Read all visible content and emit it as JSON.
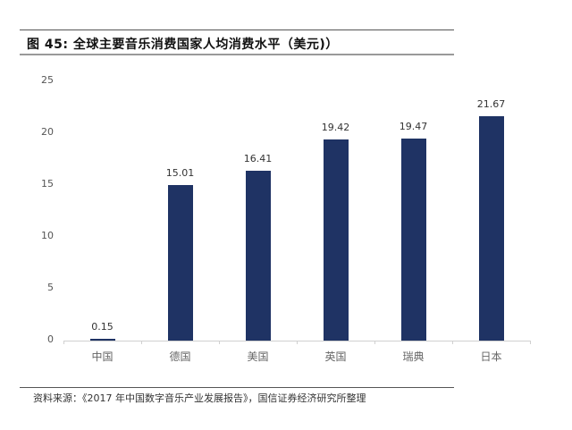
{
  "figure": {
    "title": "图 45: 全球主要音乐消费国家人均消费水平（美元)）",
    "source": "资料来源：《2017 年中国数字音乐产业发展报告》，国信证券经济研究所整理"
  },
  "colors": {
    "bar": "#1f3364",
    "axis": "#d0d0d0",
    "rule": "#555555"
  },
  "chart_data": {
    "type": "bar",
    "title": "全球主要音乐消费国家人均消费水平（美元)）",
    "xlabel": "",
    "ylabel": "",
    "categories": [
      "中国",
      "德国",
      "美国",
      "英国",
      "瑞典",
      "日本"
    ],
    "values": [
      0.15,
      15.01,
      16.41,
      19.42,
      19.47,
      21.67
    ],
    "value_labels": [
      "0.15",
      "15.01",
      "16.41",
      "19.42",
      "19.47",
      "21.67"
    ],
    "ylim": [
      0,
      25
    ],
    "yticks": [
      "0",
      "5",
      "10",
      "15",
      "20",
      "25"
    ],
    "grid": false,
    "legend": "none",
    "data_labels": true
  }
}
